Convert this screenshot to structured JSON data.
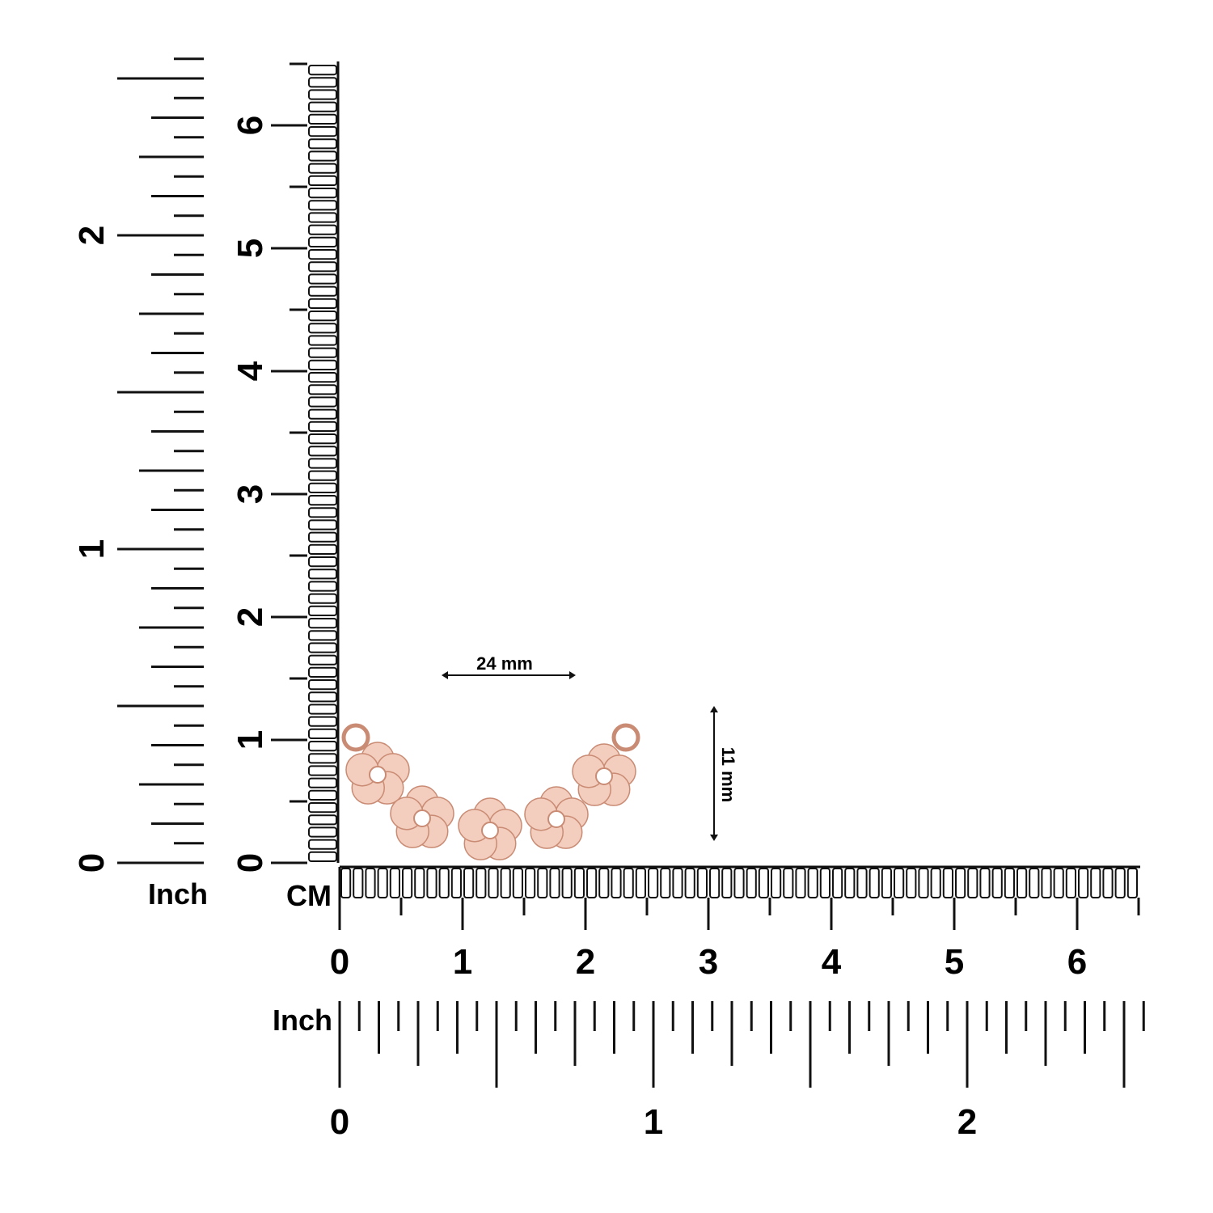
{
  "left_inch_ruler": {
    "unit": "Inch",
    "labels": [
      0,
      1,
      2
    ]
  },
  "left_cm_ruler": {
    "labels": [
      0,
      1,
      2,
      3,
      4,
      5,
      6
    ]
  },
  "bottom_cm_ruler": {
    "unit": "CM",
    "labels": [
      0,
      1,
      2,
      3,
      4,
      5,
      6
    ]
  },
  "bottom_inch_ruler": {
    "unit": "Inch",
    "labels": [
      0,
      1,
      2
    ]
  },
  "dimensions": {
    "width": "24 mm",
    "height": "11 mm"
  }
}
